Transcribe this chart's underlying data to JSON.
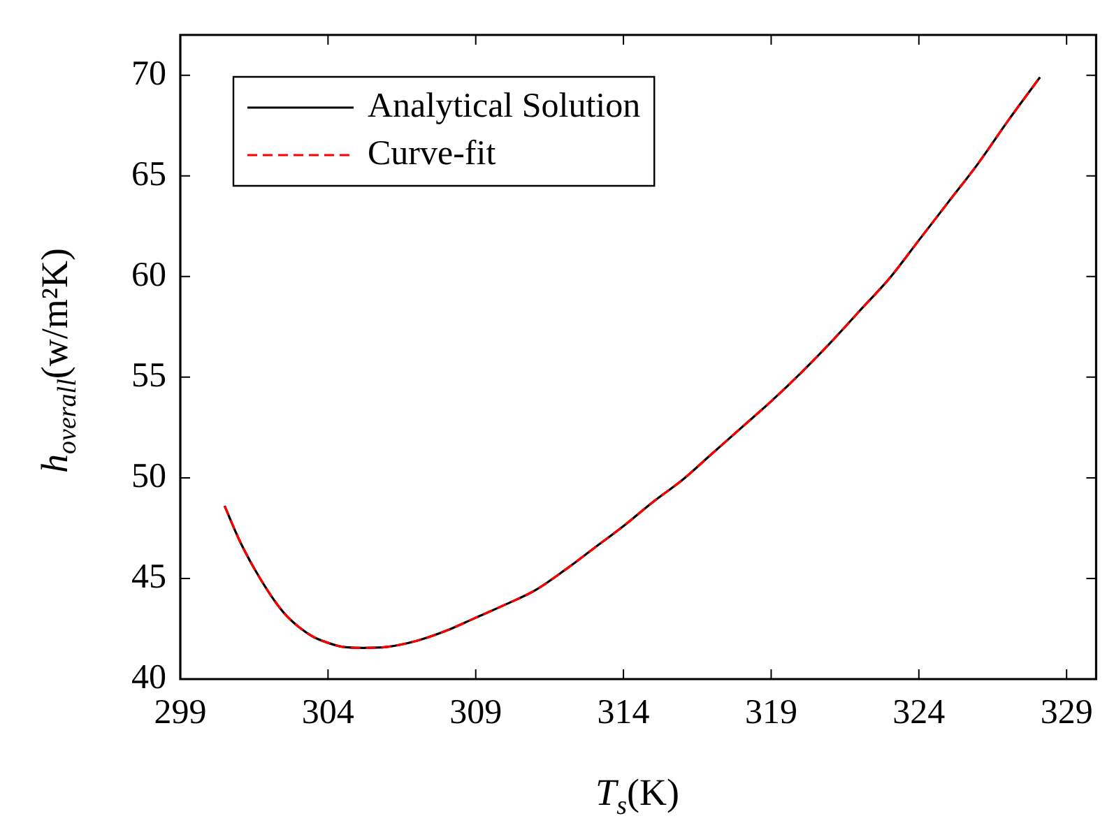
{
  "chart_data": {
    "type": "line",
    "xlabel": "T$_{s}$(K)",
    "ylabel": "h$_{overall}$(w/m²K)",
    "x": [
      300.5,
      301,
      301.5,
      302,
      302.5,
      303,
      303.5,
      304,
      304.5,
      305.2,
      306,
      307,
      308,
      309,
      310,
      311,
      312,
      313,
      314,
      315,
      316,
      317,
      318,
      319,
      320,
      321,
      322,
      323,
      324,
      325,
      326,
      327,
      328.1
    ],
    "series": [
      {
        "name": "Analytical Solution",
        "color": "#000000",
        "line_style": "solid",
        "values": [
          48.6,
          46.9,
          45.5,
          44.3,
          43.3,
          42.6,
          42.1,
          41.8,
          41.6,
          41.55,
          41.6,
          41.9,
          42.4,
          43.05,
          43.7,
          44.4,
          45.4,
          46.5,
          47.6,
          48.8,
          49.9,
          51.2,
          52.5,
          53.8,
          55.2,
          56.7,
          58.3,
          59.9,
          61.8,
          63.7,
          65.6,
          67.7,
          69.9
        ]
      },
      {
        "name": "Curve-fit",
        "color": "#ff0000",
        "line_style": "dashed",
        "values": [
          48.6,
          46.9,
          45.5,
          44.3,
          43.3,
          42.6,
          42.1,
          41.8,
          41.6,
          41.55,
          41.6,
          41.9,
          42.4,
          43.05,
          43.7,
          44.4,
          45.4,
          46.5,
          47.6,
          48.8,
          49.9,
          51.2,
          52.5,
          53.8,
          55.2,
          56.7,
          58.3,
          59.9,
          61.8,
          63.7,
          65.6,
          67.7,
          69.9
        ]
      }
    ],
    "xlim": [
      299,
      330
    ],
    "xticks": [
      299,
      304,
      309,
      314,
      319,
      324,
      329
    ],
    "ylim": [
      40,
      72
    ],
    "yticks": [
      40,
      45,
      50,
      55,
      60,
      65,
      70
    ],
    "legend": "top left",
    "marker": "none"
  }
}
